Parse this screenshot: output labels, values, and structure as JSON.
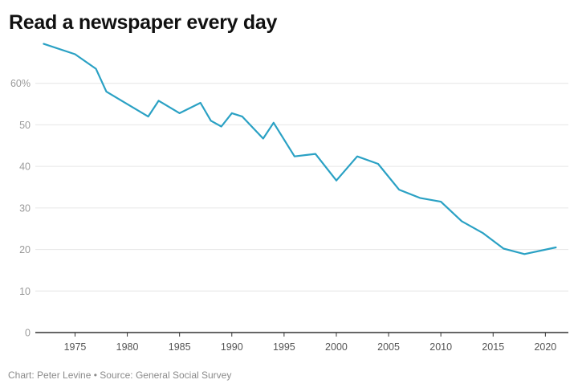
{
  "title": "Read a newspaper every day",
  "footer": {
    "credit": "Chart: Peter Levine",
    "separator": " • ",
    "source": "Source: General Social Survey"
  },
  "colors": {
    "line": "#2aa1c4",
    "grid": "#e6e6e6",
    "axis": "#333333"
  },
  "chart_data": {
    "type": "line",
    "title": "Read a newspaper every day",
    "xlabel": "",
    "ylabel": "",
    "xlim": [
      1971.2,
      2022.2
    ],
    "ylim": [
      0,
      70
    ],
    "grid": true,
    "legend": "none",
    "x_ticks": [
      1975,
      1980,
      1985,
      1990,
      1995,
      2000,
      2005,
      2010,
      2015,
      2020
    ],
    "y_ticks": [
      {
        "value": 0,
        "label": "0"
      },
      {
        "value": 10,
        "label": "10"
      },
      {
        "value": 20,
        "label": "20"
      },
      {
        "value": 30,
        "label": "30"
      },
      {
        "value": 40,
        "label": "40"
      },
      {
        "value": 50,
        "label": "50"
      },
      {
        "value": 60,
        "label": "60%"
      }
    ],
    "series": [
      {
        "x": [
          1972,
          1975,
          1977,
          1978,
          1982,
          1983,
          1985,
          1987,
          1988,
          1989,
          1990,
          1991,
          1993,
          1994,
          1996,
          1998,
          2000,
          2002,
          2004,
          2006,
          2008,
          2010,
          2012,
          2014,
          2016,
          2018,
          2021
        ],
        "values": [
          69.5,
          67,
          63.5,
          58,
          52,
          55.8,
          52.8,
          55.3,
          51,
          49.6,
          52.8,
          52,
          46.7,
          50.5,
          42.4,
          43,
          36.6,
          42.4,
          40.6,
          34.4,
          32.4,
          31.5,
          26.8,
          24,
          20.2,
          18.9,
          20.5
        ]
      }
    ]
  }
}
